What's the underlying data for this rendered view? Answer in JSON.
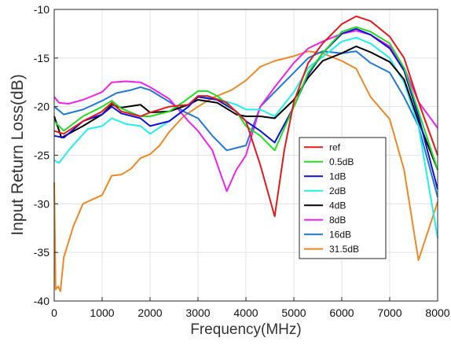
{
  "chart_data": {
    "type": "line",
    "xlabel": "Frequency(MHz)",
    "ylabel": "Input Return Loss(dB)",
    "xlim": [
      0,
      8000
    ],
    "ylim": [
      -40,
      -10
    ],
    "xticks": [
      0,
      1000,
      2000,
      3000,
      4000,
      5000,
      6000,
      7000,
      8000
    ],
    "yticks": [
      -10,
      -15,
      -20,
      -25,
      -30,
      -35,
      -40
    ],
    "xtick_labels": [
      "0",
      "1000",
      "2000",
      "3000",
      "4000",
      "5000",
      "6000",
      "7000",
      "8000"
    ],
    "ytick_labels": [
      "-10",
      "-15",
      "-20",
      "-25",
      "-30",
      "-35",
      "-40"
    ],
    "grid": true,
    "legend_position": "bottom-right",
    "series": [
      {
        "name": "ref",
        "color": "#e31a1c",
        "points": [
          [
            0,
            -22.5
          ],
          [
            200,
            -22.8
          ],
          [
            600,
            -21.5
          ],
          [
            1000,
            -20.5
          ],
          [
            1200,
            -19.6
          ],
          [
            1400,
            -20.5
          ],
          [
            1800,
            -21.0
          ],
          [
            2000,
            -20.6
          ],
          [
            2400,
            -20.0
          ],
          [
            2800,
            -19.8
          ],
          [
            3000,
            -18.9
          ],
          [
            3200,
            -18.9
          ],
          [
            3600,
            -19.6
          ],
          [
            4000,
            -21.5
          ],
          [
            4300,
            -26.0
          ],
          [
            4600,
            -31.3
          ],
          [
            4800,
            -24.5
          ],
          [
            5000,
            -19.5
          ],
          [
            5300,
            -15.5
          ],
          [
            5600,
            -13.5
          ],
          [
            6000,
            -11.5
          ],
          [
            6300,
            -10.7
          ],
          [
            6600,
            -11.2
          ],
          [
            7000,
            -12.8
          ],
          [
            7300,
            -15.0
          ],
          [
            7600,
            -19.5
          ],
          [
            8000,
            -25.0
          ]
        ]
      },
      {
        "name": "0.5dB",
        "color": "#22dd22",
        "points": [
          [
            0,
            -21.5
          ],
          [
            200,
            -22.5
          ],
          [
            600,
            -21.0
          ],
          [
            1000,
            -20.0
          ],
          [
            1200,
            -19.4
          ],
          [
            1400,
            -20.2
          ],
          [
            1800,
            -21.0
          ],
          [
            2000,
            -21.0
          ],
          [
            2400,
            -20.5
          ],
          [
            2700,
            -19.5
          ],
          [
            3000,
            -18.4
          ],
          [
            3200,
            -18.4
          ],
          [
            3400,
            -18.9
          ],
          [
            3800,
            -20.5
          ],
          [
            4000,
            -22.0
          ],
          [
            4300,
            -23.0
          ],
          [
            4600,
            -24.5
          ],
          [
            5000,
            -20.0
          ],
          [
            5300,
            -16.5
          ],
          [
            5600,
            -14.5
          ],
          [
            6000,
            -12.3
          ],
          [
            6300,
            -11.8
          ],
          [
            6600,
            -12.3
          ],
          [
            7000,
            -13.5
          ],
          [
            7300,
            -16.0
          ],
          [
            7600,
            -20.5
          ],
          [
            8000,
            -26.5
          ]
        ]
      },
      {
        "name": "1dB",
        "color": "#1010d0",
        "points": [
          [
            0,
            -23.0
          ],
          [
            200,
            -23.2
          ],
          [
            600,
            -21.5
          ],
          [
            1000,
            -20.8
          ],
          [
            1200,
            -20.0
          ],
          [
            1400,
            -20.7
          ],
          [
            1800,
            -21.2
          ],
          [
            2000,
            -22.0
          ],
          [
            2400,
            -21.5
          ],
          [
            2800,
            -20.0
          ],
          [
            3000,
            -19.0
          ],
          [
            3400,
            -19.3
          ],
          [
            3800,
            -20.5
          ],
          [
            4000,
            -21.5
          ],
          [
            4300,
            -22.5
          ],
          [
            4600,
            -23.7
          ],
          [
            5000,
            -20.0
          ],
          [
            5300,
            -16.7
          ],
          [
            5600,
            -14.5
          ],
          [
            6000,
            -12.5
          ],
          [
            6300,
            -12.0
          ],
          [
            6600,
            -12.6
          ],
          [
            7000,
            -14.0
          ],
          [
            7300,
            -16.3
          ],
          [
            7600,
            -21.0
          ],
          [
            8000,
            -28.5
          ]
        ]
      },
      {
        "name": "2dB",
        "color": "#22eeee",
        "points": [
          [
            0,
            -25.5
          ],
          [
            100,
            -25.8
          ],
          [
            300,
            -24.5
          ],
          [
            700,
            -22.3
          ],
          [
            1000,
            -22.0
          ],
          [
            1200,
            -21.2
          ],
          [
            1500,
            -21.8
          ],
          [
            1800,
            -22.0
          ],
          [
            2000,
            -22.8
          ],
          [
            2400,
            -21.5
          ],
          [
            2800,
            -20.0
          ],
          [
            3000,
            -18.9
          ],
          [
            3400,
            -19.2
          ],
          [
            3800,
            -19.8
          ],
          [
            4000,
            -20.3
          ],
          [
            4300,
            -20.3
          ],
          [
            4600,
            -21.0
          ],
          [
            5000,
            -18.5
          ],
          [
            5300,
            -16.0
          ],
          [
            5700,
            -14.5
          ],
          [
            6000,
            -13.3
          ],
          [
            6300,
            -12.9
          ],
          [
            6600,
            -13.5
          ],
          [
            7000,
            -15.0
          ],
          [
            7300,
            -17.5
          ],
          [
            7600,
            -22.0
          ],
          [
            8000,
            -33.5
          ]
        ]
      },
      {
        "name": "4dB",
        "color": "#000000",
        "points": [
          [
            0,
            -21.0
          ],
          [
            150,
            -23.2
          ],
          [
            600,
            -22.0
          ],
          [
            1000,
            -20.8
          ],
          [
            1200,
            -19.8
          ],
          [
            1400,
            -20.1
          ],
          [
            1800,
            -19.8
          ],
          [
            2000,
            -20.6
          ],
          [
            2400,
            -20.5
          ],
          [
            2800,
            -19.8
          ],
          [
            3000,
            -19.3
          ],
          [
            3400,
            -19.6
          ],
          [
            3800,
            -20.8
          ],
          [
            4000,
            -21.0
          ],
          [
            4300,
            -21.0
          ],
          [
            4600,
            -21.2
          ],
          [
            5000,
            -19.3
          ],
          [
            5300,
            -17.0
          ],
          [
            5600,
            -15.3
          ],
          [
            6000,
            -14.5
          ],
          [
            6300,
            -13.8
          ],
          [
            6600,
            -14.4
          ],
          [
            7000,
            -15.4
          ],
          [
            7300,
            -17.2
          ],
          [
            7600,
            -21.5
          ],
          [
            8000,
            -26.5
          ]
        ]
      },
      {
        "name": "8dB",
        "color": "#ee22ee",
        "points": [
          [
            0,
            -19.0
          ],
          [
            100,
            -19.6
          ],
          [
            300,
            -19.7
          ],
          [
            600,
            -19.3
          ],
          [
            1000,
            -18.5
          ],
          [
            1200,
            -17.5
          ],
          [
            1500,
            -17.4
          ],
          [
            1800,
            -17.5
          ],
          [
            2000,
            -18.0
          ],
          [
            2400,
            -19.2
          ],
          [
            2800,
            -21.5
          ],
          [
            3000,
            -22.5
          ],
          [
            3300,
            -24.5
          ],
          [
            3600,
            -28.7
          ],
          [
            3800,
            -26.5
          ],
          [
            4000,
            -25.0
          ],
          [
            4300,
            -20.0
          ],
          [
            4600,
            -18.0
          ],
          [
            5000,
            -15.5
          ],
          [
            5300,
            -14.0
          ],
          [
            5600,
            -13.3
          ],
          [
            6000,
            -12.5
          ],
          [
            6300,
            -12.2
          ],
          [
            6600,
            -12.6
          ],
          [
            7000,
            -13.8
          ],
          [
            7300,
            -16.0
          ],
          [
            7600,
            -19.5
          ],
          [
            8000,
            -22.2
          ]
        ]
      },
      {
        "name": "16dB",
        "color": "#1e78d8",
        "points": [
          [
            0,
            -20.0
          ],
          [
            200,
            -20.8
          ],
          [
            600,
            -20.3
          ],
          [
            1000,
            -19.4
          ],
          [
            1300,
            -18.6
          ],
          [
            1600,
            -18.3
          ],
          [
            1800,
            -18.0
          ],
          [
            2000,
            -18.3
          ],
          [
            2400,
            -19.5
          ],
          [
            2700,
            -20.5
          ],
          [
            3000,
            -21.2
          ],
          [
            3300,
            -23.0
          ],
          [
            3600,
            -24.5
          ],
          [
            4000,
            -24.0
          ],
          [
            4300,
            -20.0
          ],
          [
            4600,
            -18.5
          ],
          [
            5000,
            -16.5
          ],
          [
            5300,
            -15.0
          ],
          [
            5600,
            -14.3
          ],
          [
            6000,
            -14.5
          ],
          [
            6300,
            -14.3
          ],
          [
            6600,
            -15.5
          ],
          [
            7000,
            -16.5
          ],
          [
            7300,
            -19.0
          ],
          [
            7600,
            -22.0
          ],
          [
            8000,
            -29.3
          ]
        ]
      },
      {
        "name": "31.5dB",
        "color": "#ee8822",
        "points": [
          [
            0,
            -27.8
          ],
          [
            30,
            -38.8
          ],
          [
            80,
            -38.5
          ],
          [
            130,
            -39.0
          ],
          [
            200,
            -35.5
          ],
          [
            400,
            -32.3
          ],
          [
            600,
            -30.0
          ],
          [
            1000,
            -29.1
          ],
          [
            1200,
            -27.1
          ],
          [
            1400,
            -27.0
          ],
          [
            1600,
            -26.4
          ],
          [
            1800,
            -25.3
          ],
          [
            2000,
            -24.9
          ],
          [
            2200,
            -24.0
          ],
          [
            2400,
            -22.6
          ],
          [
            2700,
            -21.0
          ],
          [
            3000,
            -20.0
          ],
          [
            3300,
            -19.1
          ],
          [
            3700,
            -18.3
          ],
          [
            4000,
            -17.3
          ],
          [
            4300,
            -15.9
          ],
          [
            4600,
            -15.3
          ],
          [
            5000,
            -14.8
          ],
          [
            5300,
            -14.3
          ],
          [
            5600,
            -14.5
          ],
          [
            6000,
            -15.3
          ],
          [
            6300,
            -16.1
          ],
          [
            6600,
            -19.0
          ],
          [
            7000,
            -21.3
          ],
          [
            7300,
            -26.5
          ],
          [
            7600,
            -35.8
          ],
          [
            8000,
            -29.8
          ]
        ]
      }
    ]
  }
}
